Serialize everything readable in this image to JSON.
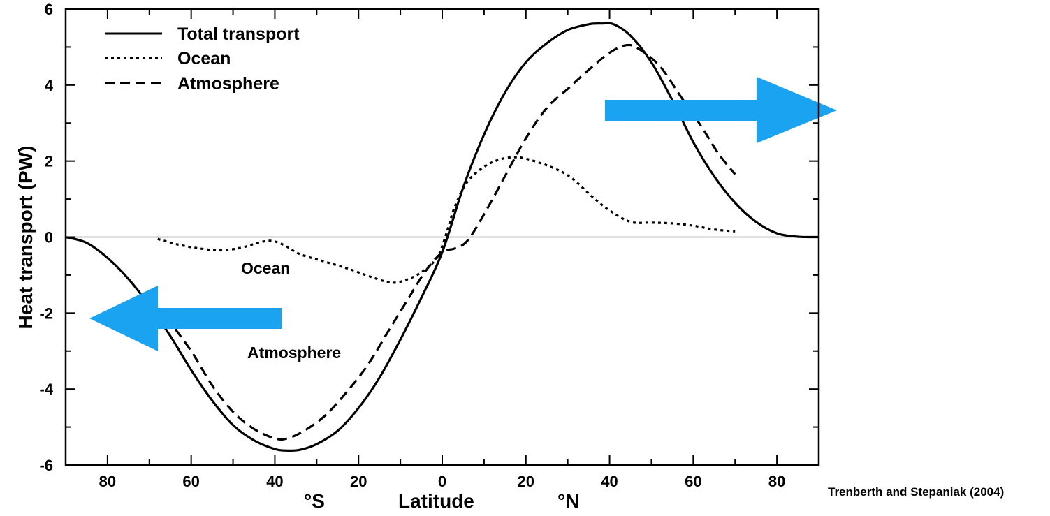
{
  "chart_data": {
    "type": "line",
    "title": "",
    "ylabel": "Heat transport  (PW)",
    "xlabel": "Latitude",
    "x_hemisphere_labels": {
      "south": "°S",
      "north": "°N"
    },
    "xlim": [
      -90,
      90
    ],
    "ylim": [
      -6,
      6
    ],
    "x_ticks": [
      -80,
      -60,
      -40,
      -20,
      0,
      20,
      40,
      60,
      80
    ],
    "x_tick_labels": [
      "80",
      "60",
      "40",
      "20",
      "0",
      "20",
      "40",
      "60",
      "80"
    ],
    "y_ticks": [
      -6,
      -4,
      -2,
      0,
      2,
      4,
      6
    ],
    "y_tick_labels": [
      "-6",
      "-4",
      "-2",
      "0",
      "2",
      "4",
      "6"
    ],
    "grid": false,
    "legend_position": "top-left",
    "series": [
      {
        "name": "Total transport",
        "style": "solid",
        "color": "#000000",
        "x": [
          -90,
          -85,
          -80,
          -75,
          -70,
          -65,
          -60,
          -55,
          -50,
          -45,
          -40,
          -37,
          -34,
          -30,
          -25,
          -20,
          -15,
          -10,
          -5,
          0,
          5,
          10,
          15,
          20,
          25,
          30,
          35,
          38,
          41,
          45,
          50,
          55,
          60,
          65,
          70,
          75,
          80,
          85,
          90
        ],
        "y": [
          0,
          -0.15,
          -0.55,
          -1.1,
          -1.8,
          -2.6,
          -3.5,
          -4.3,
          -4.95,
          -5.35,
          -5.58,
          -5.62,
          -5.6,
          -5.45,
          -5.1,
          -4.5,
          -3.7,
          -2.7,
          -1.6,
          -0.4,
          1.3,
          2.7,
          3.8,
          4.6,
          5.1,
          5.45,
          5.6,
          5.62,
          5.6,
          5.3,
          4.6,
          3.6,
          2.5,
          1.6,
          0.9,
          0.4,
          0.1,
          0.01,
          0
        ]
      },
      {
        "name": "Ocean",
        "style": "dotted",
        "color": "#000000",
        "x": [
          -68,
          -63,
          -58,
          -53,
          -48,
          -44,
          -41,
          -38,
          -34,
          -28,
          -22,
          -17,
          -12,
          -8,
          -4,
          -1,
          1,
          3,
          6,
          10,
          14,
          18,
          22,
          27,
          31,
          36,
          40,
          45,
          50,
          55,
          60,
          65,
          70
        ],
        "y": [
          -0.05,
          -0.2,
          -0.3,
          -0.35,
          -0.28,
          -0.15,
          -0.1,
          -0.2,
          -0.45,
          -0.65,
          -0.85,
          -1.05,
          -1.2,
          -1.1,
          -0.85,
          -0.5,
          0.1,
          0.8,
          1.45,
          1.85,
          2.05,
          2.1,
          2.0,
          1.8,
          1.55,
          1.05,
          0.7,
          0.4,
          0.38,
          0.36,
          0.3,
          0.2,
          0.15
        ]
      },
      {
        "name": "Atmosphere",
        "style": "dashed",
        "color": "#000000",
        "x": [
          -66,
          -60,
          -55,
          -50,
          -45,
          -40,
          -37,
          -33,
          -28,
          -23,
          -18,
          -13,
          -8,
          -4,
          0,
          3,
          6,
          10,
          15,
          20,
          25,
          30,
          35,
          40,
          44,
          47,
          52,
          57,
          62,
          66,
          70
        ],
        "y": [
          -2.1,
          -3.0,
          -3.9,
          -4.6,
          -5.05,
          -5.3,
          -5.3,
          -5.1,
          -4.7,
          -4.1,
          -3.4,
          -2.5,
          -1.6,
          -0.9,
          -0.4,
          -0.3,
          -0.1,
          0.6,
          1.6,
          2.6,
          3.4,
          3.9,
          4.4,
          4.85,
          5.05,
          4.95,
          4.5,
          3.7,
          2.9,
          2.2,
          1.65
        ]
      }
    ],
    "annotations": {
      "ocean_label": "Ocean",
      "atmosphere_label": "Atmosphere"
    },
    "arrows": [
      {
        "direction": "east",
        "color": "#1aa3f0"
      },
      {
        "direction": "west",
        "color": "#1aa3f0"
      }
    ],
    "credit": "Trenberth and Stepaniak (2004)"
  }
}
